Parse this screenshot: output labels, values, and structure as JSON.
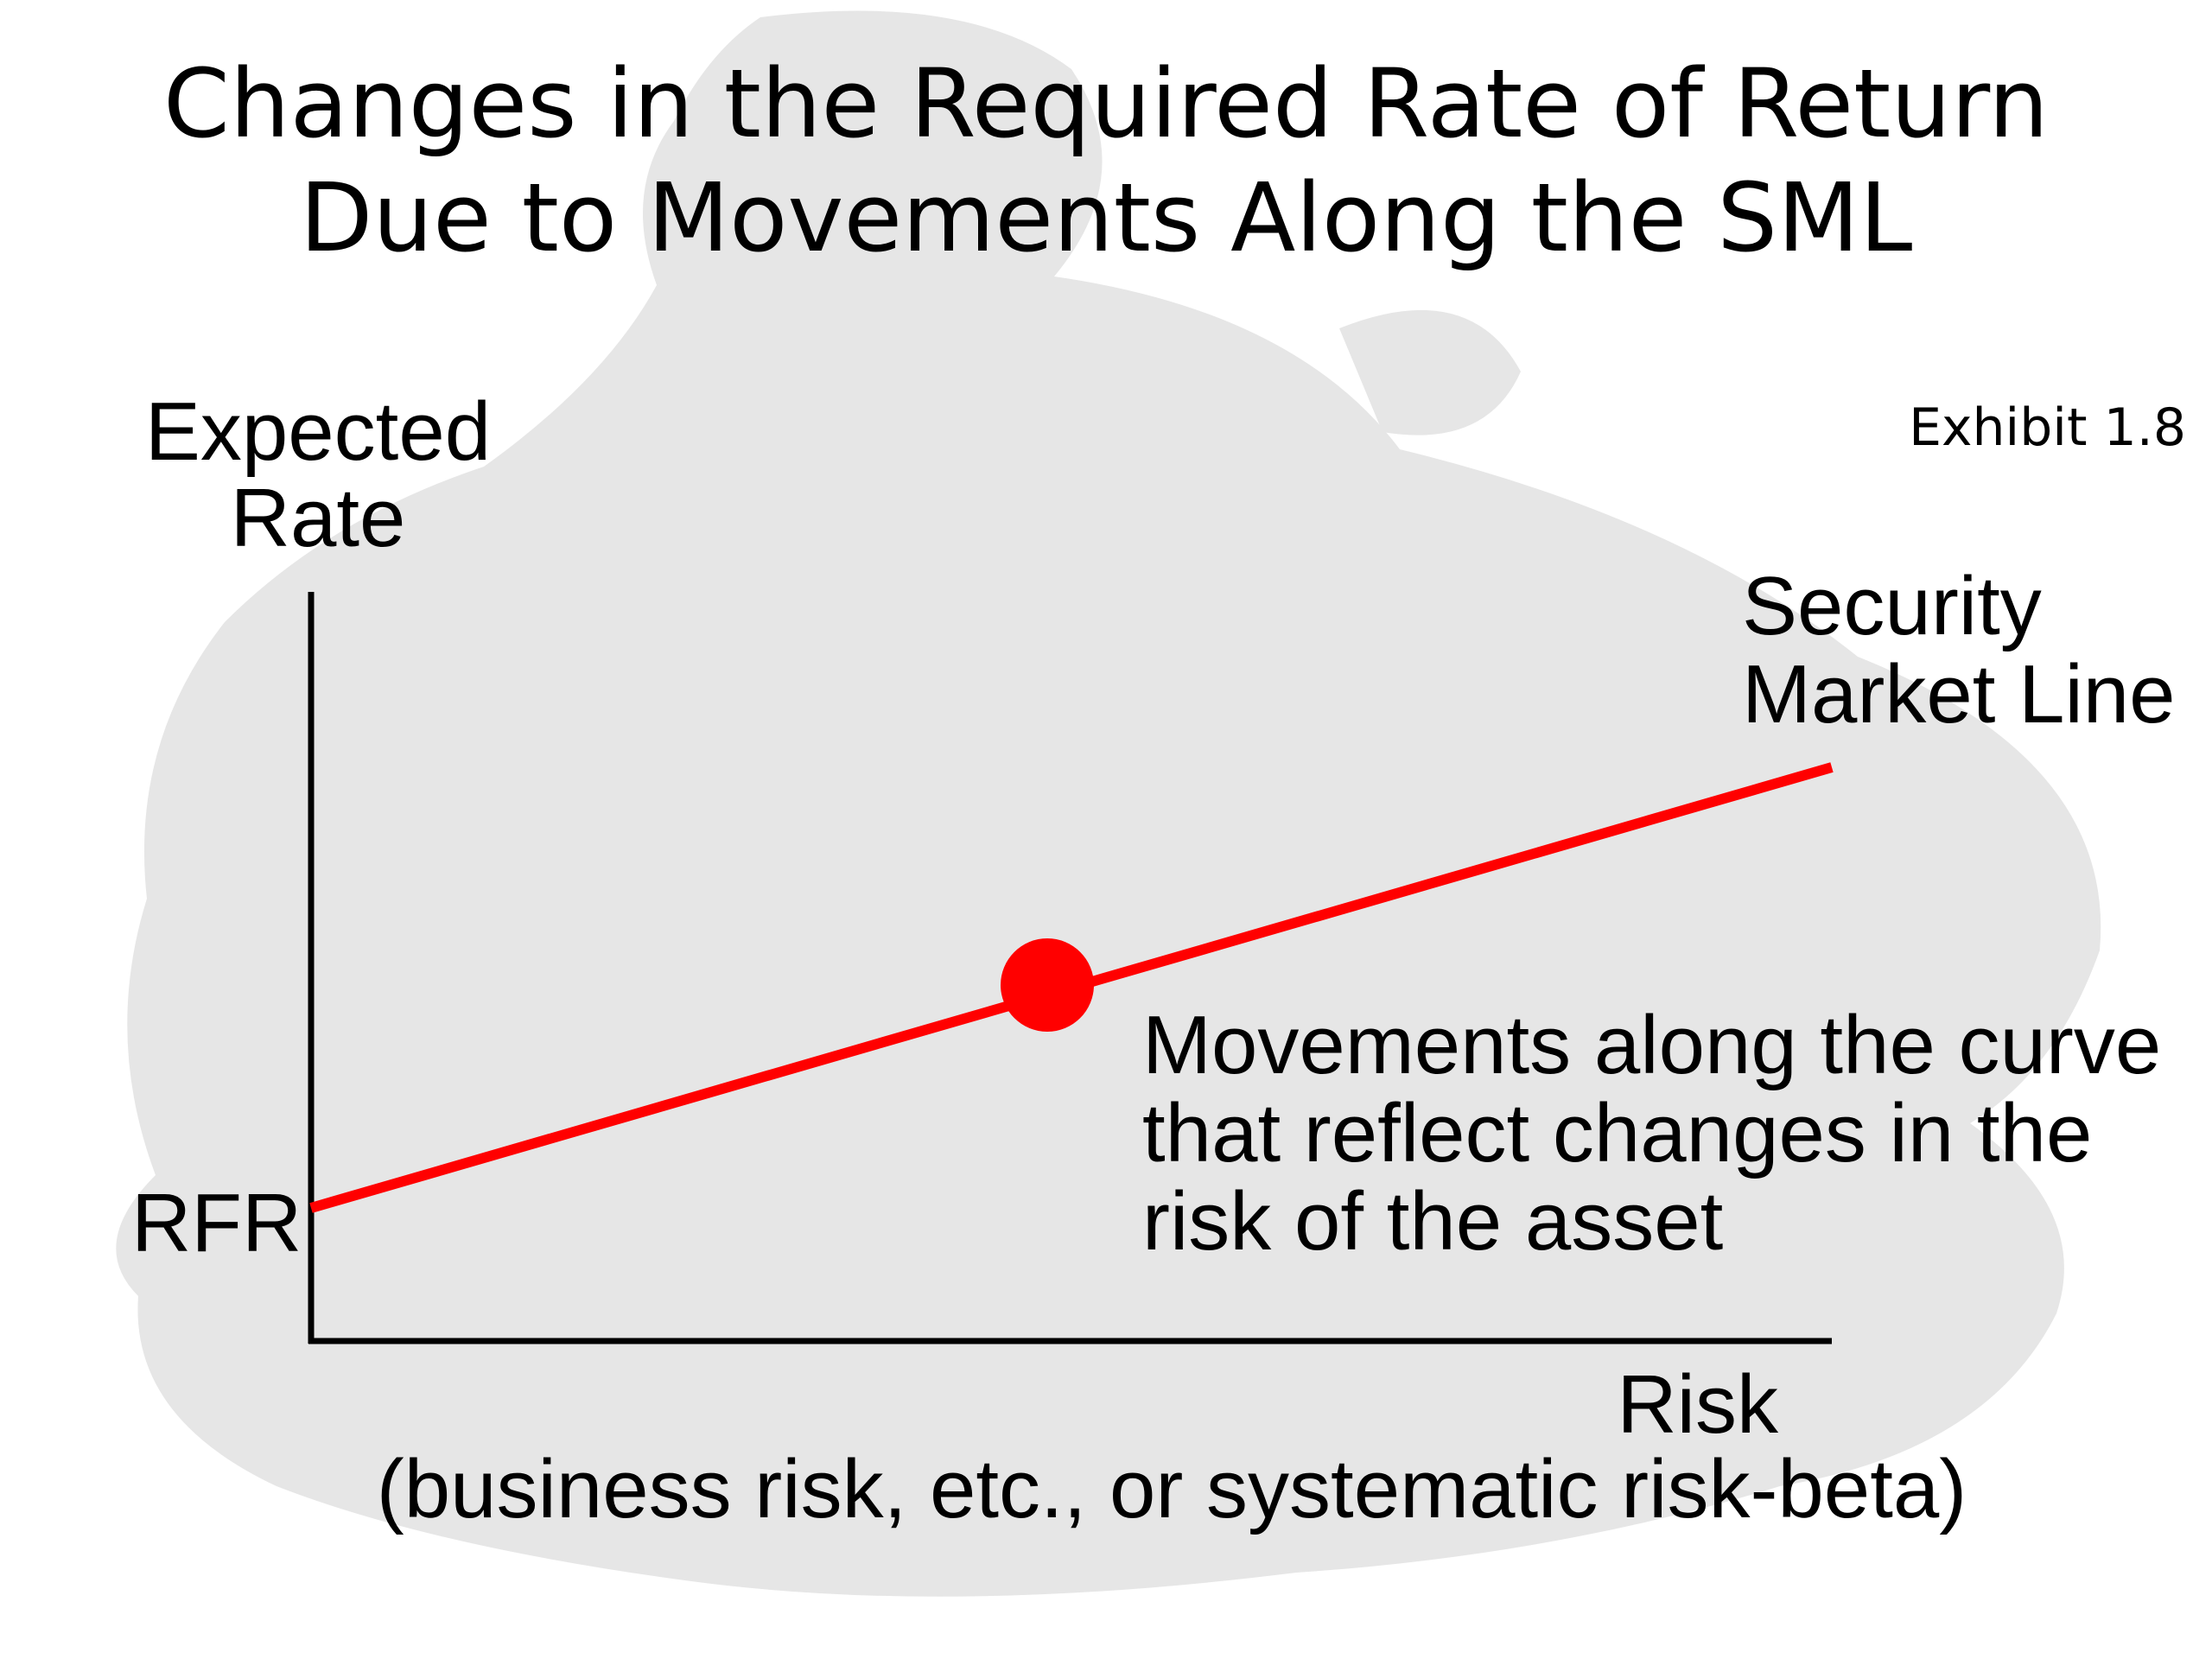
{
  "title": {
    "line1": "Changes in the Required Rate of Return",
    "line2": "Due to Movements Along the SML"
  },
  "exhibit": "Exhibit 1.8",
  "axes": {
    "y_label_line1": "Expected",
    "y_label_line2": "Rate",
    "x_label": "Risk",
    "x_sublabel": "(business risk, etc., or systematic risk-beta)",
    "intercept_label": "RFR"
  },
  "line_label": {
    "line1": "Security",
    "line2": "Market Line"
  },
  "annotation": {
    "line1": "Movements along the curve",
    "line2": "that reflect changes in the",
    "line3": "risk of the asset"
  },
  "colors": {
    "sml_line": "#ff0000",
    "point": "#ff0000",
    "axes": "#000000",
    "background_shape": "#e6e6e6"
  }
}
